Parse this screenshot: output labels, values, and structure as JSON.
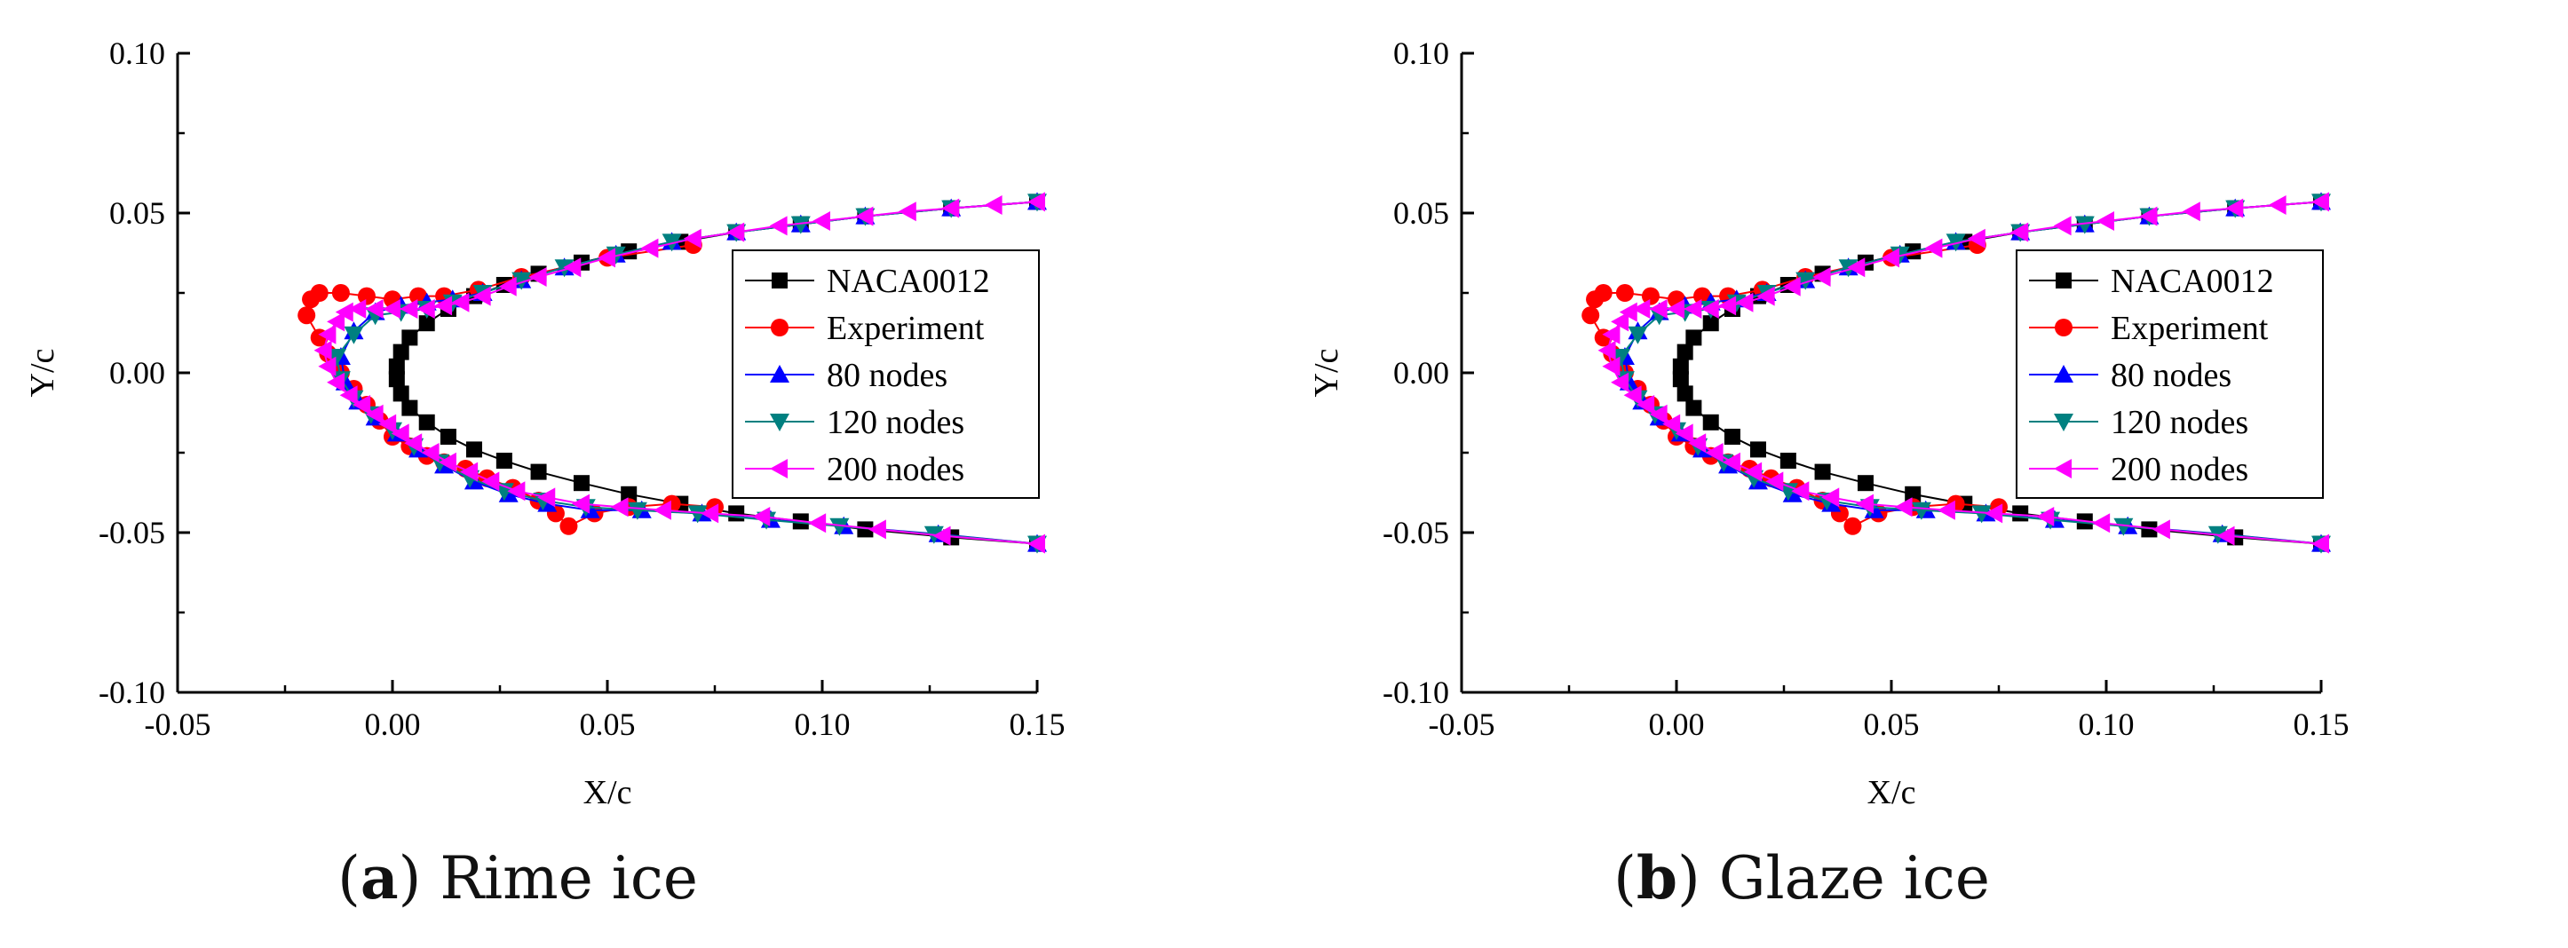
{
  "figure": {
    "panels": [
      {
        "letter": "a",
        "caption": "Rime ice"
      },
      {
        "letter": "b",
        "caption": "Glaze ice"
      }
    ]
  },
  "colors": {
    "NACA0012": "#000000",
    "Experiment": "#ff0000",
    "80 nodes": "#0000ff",
    "120 nodes": "#008080",
    "200 nodes": "#ff00ff"
  },
  "chart_data": [
    {
      "type": "line",
      "title": "",
      "xlabel": "X/c",
      "ylabel": "Y/c",
      "xlim": [
        -0.05,
        0.15
      ],
      "ylim": [
        -0.1,
        0.1
      ],
      "xticks": [
        "-0.05",
        "0.00",
        "0.05",
        "0.10",
        "0.15"
      ],
      "yticks": [
        "0.10",
        "0.05",
        "0.00",
        "-0.05",
        "-0.10"
      ],
      "grid": false,
      "legend": "right",
      "series": [
        {
          "name": "NACA0012",
          "marker": "square",
          "x": [
            0.15,
            0.13,
            0.11,
            0.095,
            0.08,
            0.067,
            0.055,
            0.044,
            0.034,
            0.026,
            0.019,
            0.013,
            0.008,
            0.004,
            0.002,
            0.001,
            0.001,
            0.002,
            0.004,
            0.008,
            0.013,
            0.019,
            0.026,
            0.034,
            0.044,
            0.055,
            0.067,
            0.08,
            0.095,
            0.11,
            0.13,
            0.15
          ],
          "y": [
            0.0535,
            0.0515,
            0.049,
            0.0465,
            0.044,
            0.041,
            0.038,
            0.0345,
            0.031,
            0.0275,
            0.024,
            0.02,
            0.0155,
            0.011,
            0.0065,
            0.002,
            -0.002,
            -0.0065,
            -0.011,
            -0.0155,
            -0.02,
            -0.024,
            -0.0275,
            -0.031,
            -0.0345,
            -0.038,
            -0.041,
            -0.044,
            -0.0465,
            -0.049,
            -0.0515,
            -0.0535
          ]
        },
        {
          "name": "Experiment",
          "marker": "circle",
          "x": [
            0.07,
            0.05,
            0.03,
            0.02,
            0.012,
            0.006,
            0.0,
            -0.006,
            -0.012,
            -0.017,
            -0.019,
            -0.02,
            -0.017,
            -0.015,
            -0.012,
            -0.009,
            -0.006,
            -0.003,
            0.0,
            0.004,
            0.008,
            0.012,
            0.017,
            0.022,
            0.028,
            0.034,
            0.038,
            0.041,
            0.047,
            0.055,
            0.065,
            0.075
          ],
          "y": [
            0.04,
            0.036,
            0.03,
            0.026,
            0.024,
            0.024,
            0.023,
            0.024,
            0.025,
            0.025,
            0.023,
            0.018,
            0.011,
            0.006,
            0.0,
            -0.005,
            -0.01,
            -0.015,
            -0.02,
            -0.023,
            -0.026,
            -0.028,
            -0.03,
            -0.033,
            -0.036,
            -0.04,
            -0.044,
            -0.048,
            -0.044,
            -0.042,
            -0.041,
            -0.042
          ]
        },
        {
          "name": "80 nodes",
          "marker": "triangle-up",
          "x": [
            0.15,
            0.13,
            0.11,
            0.095,
            0.08,
            0.065,
            0.052,
            0.04,
            0.03,
            0.021,
            0.014,
            0.008,
            0.002,
            -0.004,
            -0.009,
            -0.012,
            -0.011,
            -0.008,
            -0.004,
            0.001,
            0.006,
            0.012,
            0.019,
            0.027,
            0.036,
            0.046,
            0.058,
            0.072,
            0.088,
            0.105,
            0.127,
            0.15
          ],
          "y": [
            0.0535,
            0.0515,
            0.049,
            0.0465,
            0.044,
            0.041,
            0.037,
            0.033,
            0.029,
            0.025,
            0.023,
            0.022,
            0.021,
            0.019,
            0.013,
            0.005,
            -0.003,
            -0.009,
            -0.014,
            -0.019,
            -0.024,
            -0.029,
            -0.034,
            -0.038,
            -0.041,
            -0.043,
            -0.043,
            -0.044,
            -0.046,
            -0.048,
            -0.0505,
            -0.0535
          ]
        },
        {
          "name": "120 nodes",
          "marker": "triangle-down",
          "x": [
            0.15,
            0.13,
            0.11,
            0.095,
            0.08,
            0.065,
            0.052,
            0.04,
            0.03,
            0.021,
            0.014,
            0.008,
            0.002,
            -0.004,
            -0.009,
            -0.013,
            -0.012,
            -0.009,
            -0.005,
            0.0,
            0.005,
            0.011,
            0.018,
            0.026,
            0.035,
            0.045,
            0.057,
            0.071,
            0.087,
            0.104,
            0.126,
            0.15
          ],
          "y": [
            0.0535,
            0.0515,
            0.049,
            0.0465,
            0.044,
            0.041,
            0.037,
            0.033,
            0.029,
            0.025,
            0.022,
            0.02,
            0.019,
            0.018,
            0.012,
            0.005,
            -0.002,
            -0.008,
            -0.013,
            -0.018,
            -0.023,
            -0.028,
            -0.033,
            -0.037,
            -0.04,
            -0.042,
            -0.043,
            -0.044,
            -0.046,
            -0.048,
            -0.0505,
            -0.0535
          ]
        },
        {
          "name": "200 nodes",
          "marker": "triangle-left",
          "x": [
            0.15,
            0.14,
            0.13,
            0.12,
            0.11,
            0.1,
            0.09,
            0.08,
            0.07,
            0.06,
            0.05,
            0.042,
            0.034,
            0.027,
            0.021,
            0.016,
            0.012,
            0.008,
            0.004,
            0.0,
            -0.004,
            -0.008,
            -0.011,
            -0.013,
            -0.015,
            -0.016,
            -0.015,
            -0.013,
            -0.01,
            -0.007,
            -0.004,
            -0.001,
            0.002,
            0.005,
            0.009,
            0.013,
            0.018,
            0.023,
            0.029,
            0.036,
            0.044,
            0.053,
            0.063,
            0.074,
            0.086,
            0.099,
            0.113,
            0.128,
            0.15
          ],
          "y": [
            0.0535,
            0.0525,
            0.0515,
            0.0505,
            0.049,
            0.0475,
            0.046,
            0.044,
            0.042,
            0.039,
            0.036,
            0.033,
            0.03,
            0.027,
            0.024,
            0.022,
            0.021,
            0.02,
            0.02,
            0.02,
            0.02,
            0.02,
            0.019,
            0.016,
            0.012,
            0.007,
            0.002,
            -0.003,
            -0.007,
            -0.01,
            -0.013,
            -0.016,
            -0.019,
            -0.022,
            -0.025,
            -0.028,
            -0.031,
            -0.034,
            -0.037,
            -0.039,
            -0.041,
            -0.042,
            -0.043,
            -0.044,
            -0.045,
            -0.047,
            -0.049,
            -0.051,
            -0.0535
          ]
        }
      ]
    },
    {
      "type": "line",
      "title": "",
      "xlabel": "X/c",
      "ylabel": "Y/c",
      "xlim": [
        -0.05,
        0.15
      ],
      "ylim": [
        -0.1,
        0.1
      ],
      "xticks": [
        "-0.05",
        "0.00",
        "0.05",
        "0.10",
        "0.15"
      ],
      "yticks": [
        "0.10",
        "0.05",
        "0.00",
        "-0.05",
        "-0.10"
      ],
      "grid": false,
      "legend": "right",
      "series": [
        {
          "name": "NACA0012",
          "marker": "square",
          "x": [
            0.15,
            0.13,
            0.11,
            0.095,
            0.08,
            0.067,
            0.055,
            0.044,
            0.034,
            0.026,
            0.019,
            0.013,
            0.008,
            0.004,
            0.002,
            0.001,
            0.001,
            0.002,
            0.004,
            0.008,
            0.013,
            0.019,
            0.026,
            0.034,
            0.044,
            0.055,
            0.067,
            0.08,
            0.095,
            0.11,
            0.13,
            0.15
          ],
          "y": [
            0.0535,
            0.0515,
            0.049,
            0.0465,
            0.044,
            0.041,
            0.038,
            0.0345,
            0.031,
            0.0275,
            0.024,
            0.02,
            0.0155,
            0.011,
            0.0065,
            0.002,
            -0.002,
            -0.0065,
            -0.011,
            -0.0155,
            -0.02,
            -0.024,
            -0.0275,
            -0.031,
            -0.0345,
            -0.038,
            -0.041,
            -0.044,
            -0.0465,
            -0.049,
            -0.0515,
            -0.0535
          ]
        },
        {
          "name": "Experiment",
          "marker": "circle",
          "x": [
            0.07,
            0.05,
            0.03,
            0.02,
            0.012,
            0.006,
            0.0,
            -0.006,
            -0.012,
            -0.017,
            -0.019,
            -0.02,
            -0.017,
            -0.015,
            -0.012,
            -0.009,
            -0.006,
            -0.003,
            0.0,
            0.004,
            0.008,
            0.012,
            0.017,
            0.022,
            0.028,
            0.034,
            0.038,
            0.041,
            0.047,
            0.055,
            0.065,
            0.075
          ],
          "y": [
            0.04,
            0.036,
            0.03,
            0.026,
            0.024,
            0.024,
            0.023,
            0.024,
            0.025,
            0.025,
            0.023,
            0.018,
            0.011,
            0.006,
            0.0,
            -0.005,
            -0.01,
            -0.015,
            -0.02,
            -0.023,
            -0.026,
            -0.028,
            -0.03,
            -0.033,
            -0.036,
            -0.04,
            -0.044,
            -0.048,
            -0.044,
            -0.042,
            -0.041,
            -0.042
          ]
        },
        {
          "name": "80 nodes",
          "marker": "triangle-up",
          "x": [
            0.15,
            0.13,
            0.11,
            0.095,
            0.08,
            0.065,
            0.052,
            0.04,
            0.03,
            0.021,
            0.014,
            0.008,
            0.002,
            -0.004,
            -0.009,
            -0.012,
            -0.011,
            -0.008,
            -0.004,
            0.001,
            0.006,
            0.012,
            0.019,
            0.027,
            0.036,
            0.046,
            0.058,
            0.072,
            0.088,
            0.105,
            0.127,
            0.15
          ],
          "y": [
            0.0535,
            0.0515,
            0.049,
            0.0465,
            0.044,
            0.041,
            0.037,
            0.033,
            0.029,
            0.025,
            0.023,
            0.022,
            0.021,
            0.019,
            0.013,
            0.005,
            -0.003,
            -0.009,
            -0.014,
            -0.019,
            -0.024,
            -0.029,
            -0.034,
            -0.038,
            -0.041,
            -0.043,
            -0.043,
            -0.044,
            -0.046,
            -0.048,
            -0.0505,
            -0.0535
          ]
        },
        {
          "name": "120 nodes",
          "marker": "triangle-down",
          "x": [
            0.15,
            0.13,
            0.11,
            0.095,
            0.08,
            0.065,
            0.052,
            0.04,
            0.03,
            0.021,
            0.014,
            0.008,
            0.002,
            -0.004,
            -0.009,
            -0.013,
            -0.012,
            -0.009,
            -0.005,
            0.0,
            0.005,
            0.011,
            0.018,
            0.026,
            0.035,
            0.045,
            0.057,
            0.071,
            0.087,
            0.104,
            0.126,
            0.15
          ],
          "y": [
            0.0535,
            0.0515,
            0.049,
            0.0465,
            0.044,
            0.041,
            0.037,
            0.033,
            0.029,
            0.025,
            0.022,
            0.02,
            0.019,
            0.018,
            0.012,
            0.005,
            -0.002,
            -0.008,
            -0.013,
            -0.018,
            -0.023,
            -0.028,
            -0.033,
            -0.037,
            -0.04,
            -0.042,
            -0.043,
            -0.044,
            -0.046,
            -0.048,
            -0.0505,
            -0.0535
          ]
        },
        {
          "name": "200 nodes",
          "marker": "triangle-left",
          "x": [
            0.15,
            0.14,
            0.13,
            0.12,
            0.11,
            0.1,
            0.09,
            0.08,
            0.07,
            0.06,
            0.05,
            0.042,
            0.034,
            0.027,
            0.021,
            0.016,
            0.012,
            0.008,
            0.004,
            0.0,
            -0.004,
            -0.008,
            -0.011,
            -0.013,
            -0.015,
            -0.016,
            -0.015,
            -0.013,
            -0.01,
            -0.007,
            -0.004,
            -0.001,
            0.002,
            0.005,
            0.009,
            0.013,
            0.018,
            0.023,
            0.029,
            0.036,
            0.044,
            0.053,
            0.063,
            0.074,
            0.086,
            0.099,
            0.113,
            0.128,
            0.15
          ],
          "y": [
            0.0535,
            0.0525,
            0.0515,
            0.0505,
            0.049,
            0.0475,
            0.046,
            0.044,
            0.042,
            0.039,
            0.036,
            0.033,
            0.03,
            0.027,
            0.024,
            0.022,
            0.021,
            0.02,
            0.02,
            0.02,
            0.02,
            0.02,
            0.019,
            0.016,
            0.012,
            0.007,
            0.002,
            -0.003,
            -0.007,
            -0.01,
            -0.013,
            -0.016,
            -0.019,
            -0.022,
            -0.025,
            -0.028,
            -0.031,
            -0.034,
            -0.037,
            -0.039,
            -0.041,
            -0.042,
            -0.043,
            -0.044,
            -0.045,
            -0.047,
            -0.049,
            -0.051,
            -0.0535
          ]
        }
      ]
    }
  ]
}
